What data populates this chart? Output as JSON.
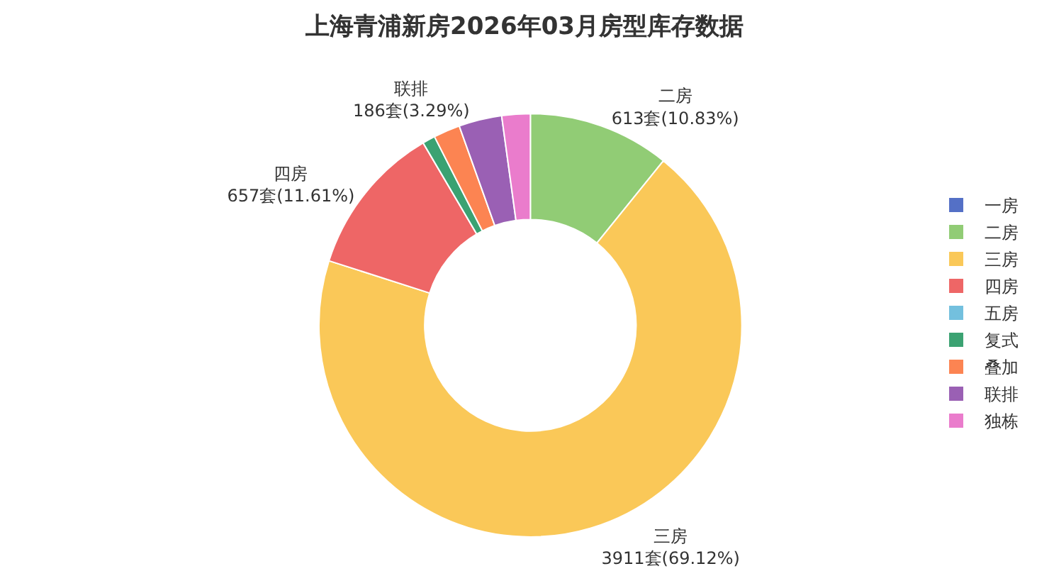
{
  "chart_data": {
    "type": "donut",
    "title": "上海青浦新房2026年03月房型库存数据",
    "categories": [
      "一房",
      "二房",
      "三房",
      "四房",
      "五房",
      "复式",
      "叠加",
      "联排",
      "独栋"
    ],
    "values": [
      0,
      613,
      3911,
      657,
      0,
      55,
      115,
      186,
      123
    ],
    "colors": [
      "#5470c6",
      "#91cc75",
      "#fac858",
      "#ee6666",
      "#73c0de",
      "#3ba272",
      "#fc8452",
      "#9a60b4",
      "#ea7ccc"
    ],
    "value_labels": [
      null,
      "二房\n613套(10.83%)",
      "三房\n3911套(69.12%)",
      "四房\n657套(11.61%)",
      null,
      null,
      null,
      "联排\n186套(3.29%)",
      null
    ],
    "legend": "right"
  }
}
